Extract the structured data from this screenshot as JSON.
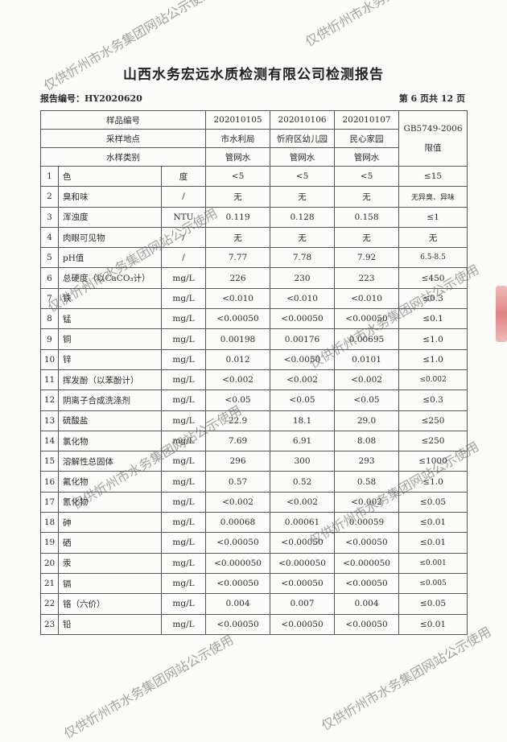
{
  "title": "山西水务宏远水质检测有限公司检测报告",
  "report_number": "报告编号：HY2020620",
  "page_info": "第 6 页共 12 页",
  "watermark": "仅供忻州市水务集团网站公示使用",
  "header": {
    "sample_no_label": "样品编号",
    "location_label": "采样地点",
    "type_label": "水样类别",
    "standard_label": "GB5749-2006 限值",
    "samples": [
      {
        "no": "202010105",
        "location": "市水利局",
        "type": "管网水"
      },
      {
        "no": "202010106",
        "location": "忻府区幼儿园",
        "type": "管网水"
      },
      {
        "no": "202010107",
        "location": "民心家园",
        "type": "管网水"
      }
    ]
  },
  "rows": [
    {
      "n": "1",
      "item": "色",
      "unit": "度",
      "v": [
        "<5",
        "<5",
        "<5"
      ],
      "limit": "≤15"
    },
    {
      "n": "2",
      "item": "臭和味",
      "unit": "/",
      "v": [
        "无",
        "无",
        "无"
      ],
      "limit": "无异臭、异味"
    },
    {
      "n": "3",
      "item": "浑浊度",
      "unit": "NTU",
      "v": [
        "0.119",
        "0.128",
        "0.158"
      ],
      "limit": "≤1"
    },
    {
      "n": "4",
      "item": "肉眼可见物",
      "unit": "/",
      "v": [
        "无",
        "无",
        "无"
      ],
      "limit": "无"
    },
    {
      "n": "5",
      "item": "pH值",
      "unit": "/",
      "v": [
        "7.77",
        "7.78",
        "7.92"
      ],
      "limit": "6.5-8.5"
    },
    {
      "n": "6",
      "item": "总硬度（以CaCO₃计）",
      "unit": "mg/L",
      "v": [
        "226",
        "230",
        "223"
      ],
      "limit": "≤450"
    },
    {
      "n": "7",
      "item": "铁",
      "unit": "mg/L",
      "v": [
        "<0.010",
        "<0.010",
        "<0.010"
      ],
      "limit": "≤0.3"
    },
    {
      "n": "8",
      "item": "锰",
      "unit": "mg/L",
      "v": [
        "<0.00050",
        "<0.00050",
        "<0.00050"
      ],
      "limit": "≤0.1"
    },
    {
      "n": "9",
      "item": "铜",
      "unit": "mg/L",
      "v": [
        "0.00198",
        "0.00176",
        "0.00695"
      ],
      "limit": "≤1.0"
    },
    {
      "n": "10",
      "item": "锌",
      "unit": "mg/L",
      "v": [
        "0.012",
        "<0.0050",
        "0.0101"
      ],
      "limit": "≤1.0"
    },
    {
      "n": "11",
      "item": "挥发酚（以苯酚计）",
      "unit": "mg/L",
      "v": [
        "<0.002",
        "<0.002",
        "<0.002"
      ],
      "limit": "≤0.002"
    },
    {
      "n": "12",
      "item": "阴离子合成洗涤剂",
      "unit": "mg/L",
      "v": [
        "<0.05",
        "<0.05",
        "<0.05"
      ],
      "limit": "≤0.3"
    },
    {
      "n": "13",
      "item": "硫酸盐",
      "unit": "mg/L",
      "v": [
        "22.9",
        "18.1",
        "29.0"
      ],
      "limit": "≤250"
    },
    {
      "n": "14",
      "item": "氯化物",
      "unit": "mg/L",
      "v": [
        "7.69",
        "6.91",
        "8.08"
      ],
      "limit": "≤250"
    },
    {
      "n": "15",
      "item": "溶解性总固体",
      "unit": "mg/L",
      "v": [
        "296",
        "300",
        "293"
      ],
      "limit": "≤1000"
    },
    {
      "n": "16",
      "item": "氟化物",
      "unit": "mg/L",
      "v": [
        "0.57",
        "0.52",
        "0.58"
      ],
      "limit": "≤1.0"
    },
    {
      "n": "17",
      "item": "氰化物",
      "unit": "mg/L",
      "v": [
        "<0.002",
        "<0.002",
        "<0.002"
      ],
      "limit": "≤0.05"
    },
    {
      "n": "18",
      "item": "砷",
      "unit": "mg/L",
      "v": [
        "0.00068",
        "0.00061",
        "0.00059"
      ],
      "limit": "≤0.01"
    },
    {
      "n": "19",
      "item": "硒",
      "unit": "mg/L",
      "v": [
        "<0.00050",
        "<0.00050",
        "<0.00050"
      ],
      "limit": "≤0.01"
    },
    {
      "n": "20",
      "item": "汞",
      "unit": "mg/L",
      "v": [
        "<0.000050",
        "<0.000050",
        "<0.000050"
      ],
      "limit": "≤0.001"
    },
    {
      "n": "21",
      "item": "镉",
      "unit": "mg/L",
      "v": [
        "<0.00050",
        "<0.00050",
        "<0.00050"
      ],
      "limit": "≤0.005"
    },
    {
      "n": "22",
      "item": "铬（六价）",
      "unit": "mg/L",
      "v": [
        "0.004",
        "0.007",
        "0.004"
      ],
      "limit": "≤0.05"
    },
    {
      "n": "23",
      "item": "铅",
      "unit": "mg/L",
      "v": [
        "<0.00050",
        "<0.00050",
        "<0.00050"
      ],
      "limit": "≤0.01"
    }
  ]
}
